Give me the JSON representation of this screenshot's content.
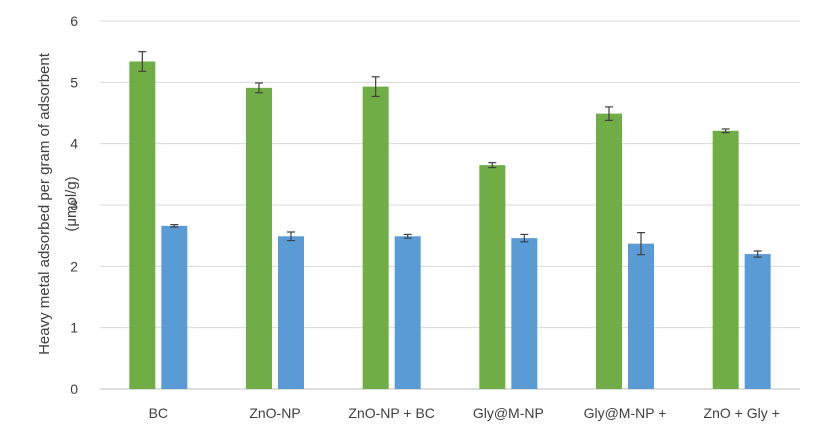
{
  "chart_data": {
    "type": "bar",
    "categories": [
      "BC",
      "ZnO-NP",
      "ZnO-NP + BC",
      "Gly@M-NP",
      "Gly@M-NP +",
      "ZnO + Gly +"
    ],
    "series": [
      {
        "color": "#70ad47",
        "values": [
          5.34,
          4.91,
          4.93,
          3.65,
          4.49,
          4.21
        ],
        "errors": [
          0.16,
          0.08,
          0.16,
          0.04,
          0.11,
          0.03
        ]
      },
      {
        "color": "#5b9bd5",
        "values": [
          2.66,
          2.49,
          2.49,
          2.46,
          2.37,
          2.2
        ],
        "errors": [
          0.02,
          0.07,
          0.03,
          0.06,
          0.18,
          0.05
        ]
      }
    ],
    "ylabel_line1": "Heavy metal adsorbed per gram of adsorbent",
    "ylabel_line2": "(μmol/g)",
    "ylim": [
      0,
      6
    ],
    "yticks": [
      0,
      1,
      2,
      3,
      4,
      5,
      6
    ],
    "grid": true
  }
}
